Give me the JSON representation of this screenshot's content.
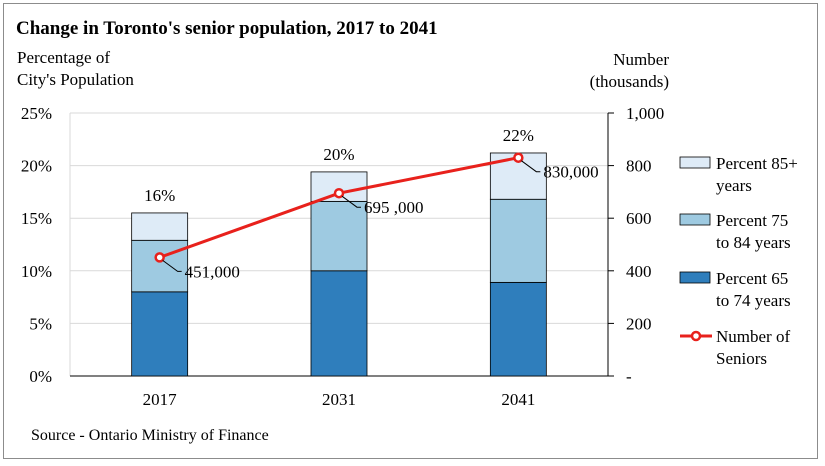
{
  "chart_data": {
    "type": "bar",
    "title": "Change in Toronto's senior population, 2017 to 2041",
    "ylabel_left": [
      "Percentage of",
      "City's Population"
    ],
    "ylabel_right": [
      "Number",
      "(thousands)"
    ],
    "categories": [
      "2017",
      "2031",
      "2041"
    ],
    "series": [
      {
        "name": [
          "Percent 65",
          "to 74 years"
        ],
        "color": "#2f7ebc",
        "values": [
          8.0,
          10.0,
          8.9
        ]
      },
      {
        "name": [
          "Percent 75",
          "to 84 years"
        ],
        "color": "#9ecae1",
        "values": [
          4.9,
          6.6,
          7.9
        ]
      },
      {
        "name": [
          "Percent 85+",
          "years"
        ],
        "color": "#deebf7",
        "values": [
          2.6,
          2.8,
          4.4
        ]
      }
    ],
    "totals_labels": [
      "16%",
      "20%",
      "22%"
    ],
    "line": {
      "name": [
        "Number of",
        "Seniors"
      ],
      "color": "#e8211c",
      "values": [
        451,
        695,
        830
      ],
      "labels": [
        "451,000",
        "695 ,000",
        "830,000"
      ]
    },
    "ylim_left": [
      0,
      25
    ],
    "yticks_left": [
      "0%",
      "5%",
      "10%",
      "15%",
      "20%",
      "25%"
    ],
    "ylim_right": [
      0,
      1000
    ],
    "yticks_right": [
      "-",
      "200",
      "400",
      "600",
      "800",
      "1,000"
    ],
    "grid": true,
    "legend": "right"
  },
  "source": "Source - Ontario Ministry of Finance"
}
